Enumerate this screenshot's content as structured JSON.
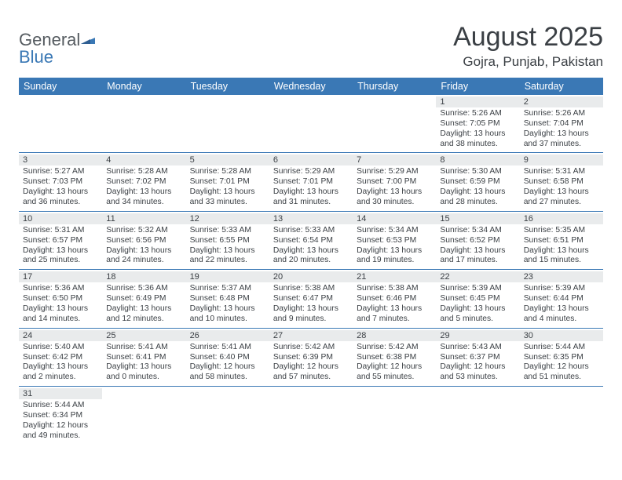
{
  "logo": {
    "word1": "General",
    "word2": "Blue",
    "color1": "#555b60",
    "color2": "#3a78b5"
  },
  "title": "August 2025",
  "subtitle": "Gojra, Punjab, Pakistan",
  "header_bg": "#3a78b5",
  "header_fg": "#ffffff",
  "daynum_bg": "#e9ebec",
  "border_color": "#3a78b5",
  "text_color": "#3a3f44",
  "font_family": "Arial, Helvetica, sans-serif",
  "columns": [
    "Sunday",
    "Monday",
    "Tuesday",
    "Wednesday",
    "Thursday",
    "Friday",
    "Saturday"
  ],
  "weeks": [
    [
      null,
      null,
      null,
      null,
      null,
      {
        "n": "1",
        "sr": "5:26 AM",
        "ss": "7:05 PM",
        "dl": "13 hours and 38 minutes."
      },
      {
        "n": "2",
        "sr": "5:26 AM",
        "ss": "7:04 PM",
        "dl": "13 hours and 37 minutes."
      }
    ],
    [
      {
        "n": "3",
        "sr": "5:27 AM",
        "ss": "7:03 PM",
        "dl": "13 hours and 36 minutes."
      },
      {
        "n": "4",
        "sr": "5:28 AM",
        "ss": "7:02 PM",
        "dl": "13 hours and 34 minutes."
      },
      {
        "n": "5",
        "sr": "5:28 AM",
        "ss": "7:01 PM",
        "dl": "13 hours and 33 minutes."
      },
      {
        "n": "6",
        "sr": "5:29 AM",
        "ss": "7:01 PM",
        "dl": "13 hours and 31 minutes."
      },
      {
        "n": "7",
        "sr": "5:29 AM",
        "ss": "7:00 PM",
        "dl": "13 hours and 30 minutes."
      },
      {
        "n": "8",
        "sr": "5:30 AM",
        "ss": "6:59 PM",
        "dl": "13 hours and 28 minutes."
      },
      {
        "n": "9",
        "sr": "5:31 AM",
        "ss": "6:58 PM",
        "dl": "13 hours and 27 minutes."
      }
    ],
    [
      {
        "n": "10",
        "sr": "5:31 AM",
        "ss": "6:57 PM",
        "dl": "13 hours and 25 minutes."
      },
      {
        "n": "11",
        "sr": "5:32 AM",
        "ss": "6:56 PM",
        "dl": "13 hours and 24 minutes."
      },
      {
        "n": "12",
        "sr": "5:33 AM",
        "ss": "6:55 PM",
        "dl": "13 hours and 22 minutes."
      },
      {
        "n": "13",
        "sr": "5:33 AM",
        "ss": "6:54 PM",
        "dl": "13 hours and 20 minutes."
      },
      {
        "n": "14",
        "sr": "5:34 AM",
        "ss": "6:53 PM",
        "dl": "13 hours and 19 minutes."
      },
      {
        "n": "15",
        "sr": "5:34 AM",
        "ss": "6:52 PM",
        "dl": "13 hours and 17 minutes."
      },
      {
        "n": "16",
        "sr": "5:35 AM",
        "ss": "6:51 PM",
        "dl": "13 hours and 15 minutes."
      }
    ],
    [
      {
        "n": "17",
        "sr": "5:36 AM",
        "ss": "6:50 PM",
        "dl": "13 hours and 14 minutes."
      },
      {
        "n": "18",
        "sr": "5:36 AM",
        "ss": "6:49 PM",
        "dl": "13 hours and 12 minutes."
      },
      {
        "n": "19",
        "sr": "5:37 AM",
        "ss": "6:48 PM",
        "dl": "13 hours and 10 minutes."
      },
      {
        "n": "20",
        "sr": "5:38 AM",
        "ss": "6:47 PM",
        "dl": "13 hours and 9 minutes."
      },
      {
        "n": "21",
        "sr": "5:38 AM",
        "ss": "6:46 PM",
        "dl": "13 hours and 7 minutes."
      },
      {
        "n": "22",
        "sr": "5:39 AM",
        "ss": "6:45 PM",
        "dl": "13 hours and 5 minutes."
      },
      {
        "n": "23",
        "sr": "5:39 AM",
        "ss": "6:44 PM",
        "dl": "13 hours and 4 minutes."
      }
    ],
    [
      {
        "n": "24",
        "sr": "5:40 AM",
        "ss": "6:42 PM",
        "dl": "13 hours and 2 minutes."
      },
      {
        "n": "25",
        "sr": "5:41 AM",
        "ss": "6:41 PM",
        "dl": "13 hours and 0 minutes."
      },
      {
        "n": "26",
        "sr": "5:41 AM",
        "ss": "6:40 PM",
        "dl": "12 hours and 58 minutes."
      },
      {
        "n": "27",
        "sr": "5:42 AM",
        "ss": "6:39 PM",
        "dl": "12 hours and 57 minutes."
      },
      {
        "n": "28",
        "sr": "5:42 AM",
        "ss": "6:38 PM",
        "dl": "12 hours and 55 minutes."
      },
      {
        "n": "29",
        "sr": "5:43 AM",
        "ss": "6:37 PM",
        "dl": "12 hours and 53 minutes."
      },
      {
        "n": "30",
        "sr": "5:44 AM",
        "ss": "6:35 PM",
        "dl": "12 hours and 51 minutes."
      }
    ],
    [
      {
        "n": "31",
        "sr": "5:44 AM",
        "ss": "6:34 PM",
        "dl": "12 hours and 49 minutes."
      },
      null,
      null,
      null,
      null,
      null,
      null
    ]
  ],
  "labels": {
    "sunrise": "Sunrise:",
    "sunset": "Sunset:",
    "daylight": "Daylight:"
  }
}
